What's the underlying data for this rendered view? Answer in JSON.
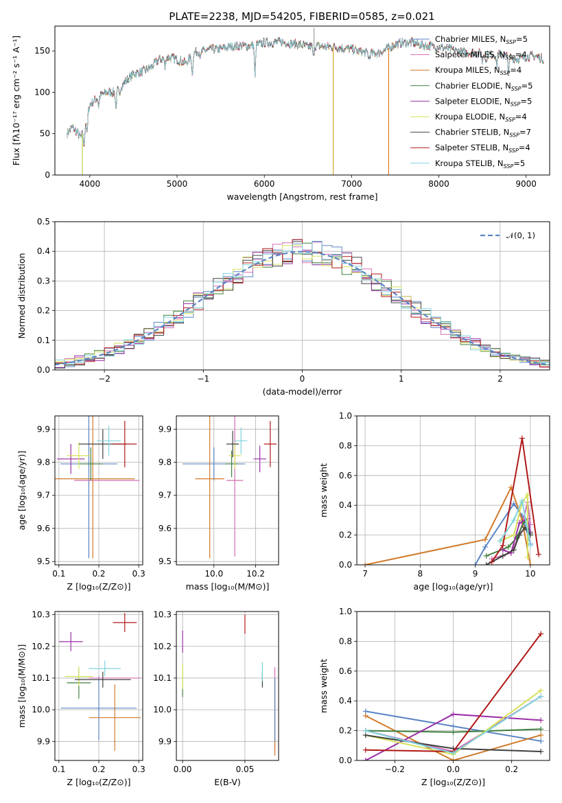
{
  "figure": {
    "title": "PLATE=2238, MJD=54205, FIBERID=0585, z=0.021"
  },
  "chart_data": [
    {
      "id": "spectrum",
      "type": "line",
      "xlabel": "wavelength [Angstrom, rest frame]",
      "ylabel": "Flux [fλ10⁻¹⁷ erg cm⁻² s⁻¹ A⁻¹]",
      "xlim": [
        3600,
        9270
      ],
      "ylim": [
        0,
        180
      ],
      "xticks": [
        4000,
        5000,
        6000,
        7000,
        8000,
        9000
      ],
      "yticks": [
        0,
        50,
        100,
        150
      ],
      "grid": false,
      "legend_position": "top-right",
      "continuum": {
        "x": [
          3740,
          3800,
          3850,
          3900,
          3950,
          4000,
          4100,
          4200,
          4300,
          4400,
          4500,
          4600,
          4700,
          4800,
          4900,
          5000,
          5100,
          5200,
          5300,
          5400,
          5500,
          5600,
          5700,
          5800,
          5900,
          6000,
          6100,
          6200,
          6300,
          6400,
          6500,
          6600,
          6700,
          6800,
          6900,
          7000,
          7100,
          7200,
          7300,
          7400,
          7500,
          7600,
          7700,
          7800,
          7900,
          8000,
          8100,
          8200,
          8300,
          8400,
          8500,
          8600,
          8700,
          8800,
          8900,
          9000,
          9100,
          9200
        ],
        "y": [
          50,
          58,
          52,
          45,
          62,
          85,
          95,
          100,
          100,
          112,
          122,
          125,
          130,
          140,
          142,
          140,
          135,
          148,
          150,
          152,
          152,
          155,
          156,
          156,
          157,
          160,
          160,
          161,
          159,
          158,
          155,
          156,
          155,
          155,
          153,
          152,
          149,
          147,
          147,
          152,
          158,
          160,
          160,
          157,
          156,
          155,
          153,
          150,
          148,
          148,
          146,
          146,
          146,
          143,
          140,
          143,
          144,
          140
        ]
      },
      "absorption_lines": [
        {
          "x": 3934,
          "depth": 25
        },
        {
          "x": 3969,
          "depth": 22
        },
        {
          "x": 4101,
          "depth": 12
        },
        {
          "x": 4300,
          "depth": 20
        },
        {
          "x": 4340,
          "depth": 10
        },
        {
          "x": 4861,
          "depth": 12
        },
        {
          "x": 5175,
          "depth": 25
        },
        {
          "x": 5270,
          "depth": 8
        },
        {
          "x": 5893,
          "depth": 40
        },
        {
          "x": 6563,
          "depth": 15
        },
        {
          "x": 7200,
          "depth": 8
        },
        {
          "x": 8498,
          "depth": 10
        },
        {
          "x": 8542,
          "depth": 12
        },
        {
          "x": 8662,
          "depth": 15
        },
        {
          "x": 8800,
          "depth": 22
        }
      ],
      "spikes": [
        {
          "x": 3915,
          "color": "#bcd24c"
        },
        {
          "x": 6790,
          "color": "#d4a72c"
        },
        {
          "x": 7425,
          "color": "#e07a1f"
        },
        {
          "x": 6570,
          "color": "#9e9e9e",
          "up": 178
        }
      ],
      "series": [
        {
          "name": "Chabrier MILES, N_SSP=5",
          "color": "#5b84c4"
        },
        {
          "name": "Salpeter MILES, N_SSP=4",
          "color": "#d36db0"
        },
        {
          "name": "Kroupa MILES, N_SSP=4",
          "color": "#d07a2a"
        },
        {
          "name": "Chabrier ELODIE, N_SSP=5",
          "color": "#3f7f3f"
        },
        {
          "name": "Salpeter ELODIE, N_SSP=5",
          "color": "#9a2fa6"
        },
        {
          "name": "Kroupa ELODIE, N_SSP=4",
          "color": "#d6e05a"
        },
        {
          "name": "Chabrier STELIB, N_SSP=7",
          "color": "#404040"
        },
        {
          "name": "Salpeter STELIB, N_SSP=4",
          "color": "#b01818"
        },
        {
          "name": "Kroupa STELIB, N_SSP=5",
          "color": "#7fd3de"
        }
      ]
    },
    {
      "id": "residuals",
      "type": "step",
      "xlabel": "(data-model)/error",
      "ylabel": "Normed distribution",
      "xlim": [
        -2.5,
        2.5
      ],
      "ylim": [
        0,
        0.5
      ],
      "xticks": [
        -2,
        -1,
        0,
        1,
        2
      ],
      "yticks": [
        0.0,
        0.1,
        0.2,
        0.3,
        0.4,
        0.5
      ],
      "grid": true,
      "legend_position": "top-right",
      "reference": {
        "name": "𝒩(0, 1)",
        "color": "#5b84c4"
      },
      "bin_width": 0.1,
      "histogram_colors": [
        "#5b84c4",
        "#d36db0",
        "#3f7f3f",
        "#9a2fa6",
        "#d6e05a",
        "#404040",
        "#b01818",
        "#7fd3de"
      ]
    },
    {
      "id": "age_vs_Z",
      "type": "errorbar",
      "xlabel": "Z [log₁₀(Z/Z⊙)]",
      "ylabel": "age  [log₁₀(age/yr)]",
      "xlim": [
        0.09,
        0.31
      ],
      "ylim": [
        9.49,
        9.94
      ],
      "xticks": [
        0.1,
        0.2,
        0.3
      ],
      "yticks": [
        9.5,
        9.6,
        9.7,
        9.8,
        9.9
      ],
      "grid": true,
      "points": [
        {
          "x": 0.175,
          "xerr": 0.071,
          "y": 9.795,
          "yerr": 0.285,
          "color": "#5b84c4"
        },
        {
          "x": 0.22,
          "xerr": 0.082,
          "y": 9.745,
          "yerr": 0.0,
          "color": "#d36db0"
        },
        {
          "x": 0.185,
          "xerr": 0.105,
          "y": 9.75,
          "yerr": 0.24,
          "color": "#d07a2a"
        },
        {
          "x": 0.18,
          "xerr": 0.03,
          "y": 9.795,
          "yerr": 0.05,
          "color": "#3f7f3f"
        },
        {
          "x": 0.13,
          "xerr": 0.035,
          "y": 9.81,
          "yerr": 0.045,
          "color": "#9a2fa6"
        },
        {
          "x": 0.15,
          "xerr": 0.03,
          "y": 9.82,
          "yerr": 0.04,
          "color": "#d6e05a"
        },
        {
          "x": 0.21,
          "xerr": 0.06,
          "y": 9.855,
          "yerr": 0.045,
          "color": "#404040"
        },
        {
          "x": 0.265,
          "xerr": 0.03,
          "y": 9.855,
          "yerr": 0.07,
          "color": "#b01818"
        },
        {
          "x": 0.225,
          "xerr": 0.03,
          "y": 9.865,
          "yerr": 0.045,
          "color": "#7fd3de"
        }
      ]
    },
    {
      "id": "age_vs_mass",
      "type": "errorbar",
      "xlabel": "mass [log₁₀(M/M⊙)]",
      "ylabel": "",
      "xlim": [
        9.82,
        10.31
      ],
      "ylim": [
        9.49,
        9.94
      ],
      "xticks": [
        10.0,
        10.2
      ],
      "yticks": [
        9.5,
        9.6,
        9.7,
        9.8,
        9.9
      ],
      "grid": true,
      "points": [
        {
          "x": 10.0,
          "xerr": 0.15,
          "y": 9.795,
          "yerr": 0.05,
          "color": "#5b84c4"
        },
        {
          "x": 10.1,
          "xerr": 0.04,
          "y": 9.745,
          "yerr": 0.23,
          "color": "#d36db0"
        },
        {
          "x": 9.98,
          "xerr": 0.07,
          "y": 9.75,
          "yerr": 0.24,
          "color": "#d07a2a"
        },
        {
          "x": 10.085,
          "xerr": 0.03,
          "y": 9.795,
          "yerr": 0.04,
          "color": "#3f7f3f"
        },
        {
          "x": 10.22,
          "xerr": 0.03,
          "y": 9.81,
          "yerr": 0.04,
          "color": "#9a2fa6"
        },
        {
          "x": 10.1,
          "xerr": 0.03,
          "y": 9.82,
          "yerr": 0.04,
          "color": "#d6e05a"
        },
        {
          "x": 10.09,
          "xerr": 0.03,
          "y": 9.855,
          "yerr": 0.04,
          "color": "#404040"
        },
        {
          "x": 10.27,
          "xerr": 0.03,
          "y": 9.855,
          "yerr": 0.07,
          "color": "#b01818"
        },
        {
          "x": 10.13,
          "xerr": 0.03,
          "y": 9.865,
          "yerr": 0.04,
          "color": "#7fd3de"
        }
      ]
    },
    {
      "id": "weight_vs_age",
      "type": "line",
      "xlabel": "age  [log₁₀(age/yr)]",
      "ylabel": "mass weight",
      "xlim": [
        6.85,
        10.35
      ],
      "ylim": [
        0,
        1.0
      ],
      "xticks": [
        7,
        8,
        9,
        10
      ],
      "yticks": [
        0.0,
        0.2,
        0.4,
        0.6,
        0.8,
        1.0
      ],
      "grid": true,
      "series": [
        {
          "color": "#5b84c4",
          "x": [
            9.0,
            9.18,
            9.7,
            9.85,
            10.0
          ],
          "y": [
            0.0,
            0.12,
            0.41,
            0.33,
            0.14
          ]
        },
        {
          "color": "#d36db0",
          "x": [
            9.3,
            9.65,
            9.8,
            9.95,
            10.0
          ],
          "y": [
            0.04,
            0.08,
            0.2,
            0.42,
            0.27
          ]
        },
        {
          "color": "#d07a2a",
          "x": [
            7.0,
            9.18,
            9.65,
            9.85,
            10.0
          ],
          "y": [
            0.0,
            0.17,
            0.52,
            0.3,
            0.0
          ]
        },
        {
          "color": "#3f7f3f",
          "x": [
            9.2,
            9.6,
            9.75,
            9.9,
            10.0
          ],
          "y": [
            0.06,
            0.12,
            0.18,
            0.3,
            0.21
          ]
        },
        {
          "color": "#9a2fa6",
          "x": [
            9.5,
            9.65,
            9.8,
            9.95,
            10.0
          ],
          "y": [
            0.1,
            0.08,
            0.28,
            0.31,
            0.22
          ]
        },
        {
          "color": "#d6e05a",
          "x": [
            9.45,
            9.7,
            9.85,
            9.95,
            9.95
          ],
          "y": [
            0.16,
            0.2,
            0.42,
            0.47,
            0.05
          ]
        },
        {
          "color": "#404040",
          "x": [
            9.2,
            9.5,
            9.7,
            9.8,
            9.9,
            10.0
          ],
          "y": [
            0.0,
            0.06,
            0.1,
            0.2,
            0.25,
            0.2
          ]
        },
        {
          "color": "#b01818",
          "x": [
            9.3,
            9.5,
            9.85,
            10.15
          ],
          "y": [
            0.02,
            0.13,
            0.85,
            0.07
          ]
        },
        {
          "color": "#7fd3de",
          "x": [
            9.45,
            9.7,
            9.85,
            10.0
          ],
          "y": [
            0.16,
            0.3,
            0.43,
            0.13
          ]
        }
      ]
    },
    {
      "id": "mass_vs_Z",
      "type": "errorbar",
      "xlabel": "Z [log₁₀(Z/Z⊙)]",
      "ylabel": "mass [log₁₀(M/M⊙)]",
      "xlim": [
        0.09,
        0.31
      ],
      "ylim": [
        9.84,
        10.31
      ],
      "xticks": [
        0.1,
        0.2,
        0.3
      ],
      "yticks": [
        9.9,
        10.0,
        10.1,
        10.2,
        10.3
      ],
      "grid": true,
      "points": [
        {
          "x": 0.2,
          "xerr": 0.095,
          "y": 10.005,
          "yerr": 0.1,
          "color": "#5b84c4"
        },
        {
          "x": 0.24,
          "xerr": 0.065,
          "y": 10.1,
          "yerr": 0.0,
          "color": "#d36db0"
        },
        {
          "x": 0.24,
          "xerr": 0.065,
          "y": 9.975,
          "yerr": 0.105,
          "color": "#d07a2a"
        },
        {
          "x": 0.15,
          "xerr": 0.03,
          "y": 10.085,
          "yerr": 0.05,
          "color": "#3f7f3f"
        },
        {
          "x": 0.13,
          "xerr": 0.03,
          "y": 10.215,
          "yerr": 0.03,
          "color": "#9a2fa6"
        },
        {
          "x": 0.15,
          "xerr": 0.035,
          "y": 10.105,
          "yerr": 0.03,
          "color": "#d6e05a"
        },
        {
          "x": 0.21,
          "xerr": 0.07,
          "y": 10.095,
          "yerr": 0.025,
          "color": "#404040"
        },
        {
          "x": 0.265,
          "xerr": 0.03,
          "y": 10.275,
          "yerr": 0.03,
          "color": "#b01818"
        },
        {
          "x": 0.215,
          "xerr": 0.04,
          "y": 10.13,
          "yerr": 0.025,
          "color": "#7fd3de"
        }
      ]
    },
    {
      "id": "mass_vs_ebv",
      "type": "errorbar",
      "xlabel": "E(B-V)",
      "ylabel": "",
      "xlim": [
        -0.005,
        0.077
      ],
      "ylim": [
        9.84,
        10.31
      ],
      "xticks": [
        0.0,
        0.05
      ],
      "yticks": [
        9.9,
        10.0,
        10.1,
        10.2,
        10.3
      ],
      "grid": true,
      "points": [
        {
          "x": 0.0,
          "xerr": 0.0,
          "y": 10.215,
          "yerr": 0.035,
          "color": "#9a2fa6"
        },
        {
          "x": 0.0,
          "xerr": 0.0,
          "y": 10.09,
          "yerr": 0.05,
          "color": "#3f7f3f"
        },
        {
          "x": 0.0,
          "xerr": 0.0,
          "y": 10.105,
          "yerr": 0.04,
          "color": "#d6e05a"
        },
        {
          "x": 0.05,
          "xerr": 0.0,
          "y": 10.27,
          "yerr": 0.03,
          "color": "#b01818"
        },
        {
          "x": 0.064,
          "xerr": 0.0,
          "y": 10.095,
          "yerr": 0.025,
          "color": "#404040"
        },
        {
          "x": 0.064,
          "xerr": 0.0,
          "y": 10.12,
          "yerr": 0.03,
          "color": "#7fd3de"
        },
        {
          "x": 0.074,
          "xerr": 0.0,
          "y": 10.005,
          "yerr": 0.13,
          "color": "#d36db0"
        },
        {
          "x": 0.074,
          "xerr": 0.0,
          "y": 9.975,
          "yerr": 0.12,
          "color": "#d07a2a"
        },
        {
          "x": 0.074,
          "xerr": 0.0,
          "y": 10.0,
          "yerr": 0.1,
          "color": "#5b84c4"
        }
      ]
    },
    {
      "id": "weight_vs_Z",
      "type": "line",
      "xlabel": "Z [log₁₀(Z/Z⊙)]",
      "ylabel": "mass weight",
      "xlim": [
        -0.33,
        0.33
      ],
      "ylim": [
        0,
        1.0
      ],
      "xticks": [
        -0.2,
        0.0,
        0.2
      ],
      "yticks": [
        0.0,
        0.2,
        0.4,
        0.6,
        0.8,
        1.0
      ],
      "grid": true,
      "series": [
        {
          "color": "#5b84c4",
          "x": [
            -0.3,
            0.0,
            0.3
          ],
          "y": [
            0.33,
            0.23,
            0.13
          ]
        },
        {
          "color": "#d36db0",
          "x": [
            -0.3,
            0.0,
            0.3
          ],
          "y": [
            0.2,
            0.06,
            0.43
          ]
        },
        {
          "color": "#d07a2a",
          "x": [
            -0.3,
            0.0,
            0.3
          ],
          "y": [
            0.3,
            0.0,
            0.17
          ]
        },
        {
          "color": "#3f7f3f",
          "x": [
            -0.3,
            0.0,
            0.3
          ],
          "y": [
            0.2,
            0.19,
            0.21
          ]
        },
        {
          "color": "#9a2fa6",
          "x": [
            -0.3,
            0.0,
            0.3
          ],
          "y": [
            0.0,
            0.31,
            0.27
          ]
        },
        {
          "color": "#d6e05a",
          "x": [
            -0.3,
            0.0,
            0.3
          ],
          "y": [
            0.17,
            0.04,
            0.47
          ]
        },
        {
          "color": "#404040",
          "x": [
            -0.3,
            0.0,
            0.3
          ],
          "y": [
            0.17,
            0.08,
            0.06
          ]
        },
        {
          "color": "#b01818",
          "x": [
            -0.3,
            0.0,
            0.3
          ],
          "y": [
            0.07,
            0.06,
            0.85
          ]
        },
        {
          "color": "#7fd3de",
          "x": [
            -0.3,
            0.0,
            0.3
          ],
          "y": [
            0.2,
            0.05,
            0.43
          ]
        }
      ]
    }
  ]
}
